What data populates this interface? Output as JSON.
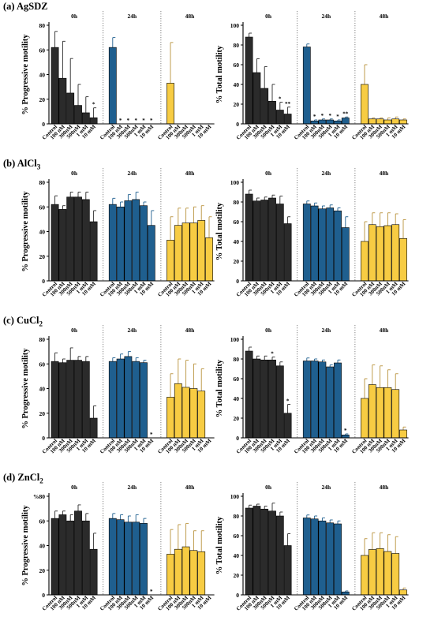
{
  "page": {
    "panels": [
      {
        "label_prefix": "(a) ",
        "label_main": "AgSDZ",
        "label_sub": ""
      },
      {
        "label_prefix": "(b) ",
        "label_main": "AlCl",
        "label_sub": "3"
      },
      {
        "label_prefix": "(c) ",
        "label_main": "CuCl",
        "label_sub": "2"
      },
      {
        "label_prefix": "(d) ",
        "label_main": "ZnCl",
        "label_sub": "2"
      }
    ]
  },
  "colors": {
    "0h": "#2b2b2b",
    "24h": "#1f5f8f",
    "48h": "#f7cc43",
    "48h_err": "#b8913a"
  },
  "chart_data": [
    {
      "id": "a-progressive",
      "type": "bar",
      "panel": 0,
      "side": "left",
      "ylabel": "% Progressive motility",
      "ylim": [
        0,
        80
      ],
      "yticks": [
        0,
        20,
        40,
        60,
        80
      ],
      "groups": [
        "0h",
        "24h",
        "48h"
      ],
      "categories": [
        "Control",
        "100 nM",
        "300nM",
        "500nM",
        "1 mM",
        "10 mM"
      ],
      "series": [
        {
          "name": "0h",
          "values": [
            62,
            37,
            25,
            15,
            9,
            5
          ],
          "errors": [
            13,
            30,
            28,
            17,
            13,
            8
          ],
          "stars": [
            "",
            "",
            "",
            "",
            "",
            "*"
          ]
        },
        {
          "name": "24h",
          "values": [
            62,
            0,
            0,
            0,
            0,
            0
          ],
          "errors": [
            8,
            0,
            0,
            0,
            0,
            0
          ],
          "stars": [
            "",
            "*",
            "*",
            "*",
            "*",
            "*"
          ]
        },
        {
          "name": "48h",
          "values": [
            33,
            0,
            0,
            0,
            0,
            0
          ],
          "errors": [
            33,
            0,
            0,
            0,
            0,
            0
          ],
          "stars": [
            "",
            "",
            "",
            "",
            "",
            ""
          ]
        }
      ]
    },
    {
      "id": "a-total",
      "type": "bar",
      "panel": 0,
      "side": "right",
      "ylabel": "% Total motility",
      "ylim": [
        0,
        100
      ],
      "yticks": [
        0,
        20,
        40,
        60,
        80,
        100
      ],
      "groups": [
        "0h",
        "24h",
        "48h"
      ],
      "categories": [
        "Control",
        "100 nM",
        "300nM",
        "500nM",
        "1 mM",
        "10 mM"
      ],
      "series": [
        {
          "name": "0h",
          "values": [
            88,
            52,
            36,
            23,
            14,
            10
          ],
          "errors": [
            4,
            14,
            22,
            17,
            8,
            7
          ],
          "stars": [
            "",
            "",
            "",
            "",
            "*",
            "**"
          ]
        },
        {
          "name": "24h",
          "values": [
            78,
            3,
            4,
            4,
            3,
            6
          ],
          "errors": [
            3,
            1,
            1,
            1,
            1,
            1
          ],
          "stars": [
            "",
            "*",
            "*",
            "*",
            "*",
            "**"
          ]
        },
        {
          "name": "48h",
          "values": [
            40,
            5,
            5,
            4,
            5,
            4
          ],
          "errors": [
            20,
            1,
            1,
            2,
            2,
            1
          ],
          "stars": [
            "",
            "",
            "",
            "",
            "",
            ""
          ]
        }
      ]
    },
    {
      "id": "b-progressive",
      "type": "bar",
      "panel": 1,
      "side": "left",
      "ylabel": "% Progressive motility",
      "ylim": [
        0,
        80
      ],
      "yticks": [
        0,
        20,
        40,
        60,
        80
      ],
      "groups": [
        "0h",
        "24h",
        "48h"
      ],
      "categories": [
        "Control",
        "100 nM",
        "300nM",
        "500nM",
        "1 mM",
        "10 mM"
      ],
      "series": [
        {
          "name": "0h",
          "values": [
            62,
            58,
            68,
            68,
            66,
            48
          ],
          "errors": [
            7,
            3,
            4,
            4,
            6,
            9
          ],
          "stars": [
            "",
            "",
            "",
            "",
            "",
            ""
          ]
        },
        {
          "name": "24h",
          "values": [
            62,
            60,
            65,
            66,
            61,
            45
          ],
          "errors": [
            5,
            4,
            5,
            6,
            3,
            12
          ],
          "stars": [
            "",
            "",
            "",
            "",
            "",
            ""
          ]
        },
        {
          "name": "48h",
          "values": [
            33,
            45,
            47,
            47,
            49,
            35
          ],
          "errors": [
            19,
            14,
            12,
            13,
            12,
            17
          ],
          "stars": [
            "",
            "",
            "",
            "",
            "",
            ""
          ]
        }
      ]
    },
    {
      "id": "b-total",
      "type": "bar",
      "panel": 1,
      "side": "right",
      "ylabel": "% Total motility",
      "ylim": [
        0,
        100
      ],
      "yticks": [
        0,
        20,
        40,
        60,
        80,
        100
      ],
      "groups": [
        "0h",
        "24h",
        "48h"
      ],
      "categories": [
        "Control",
        "100 nM",
        "300nM",
        "500nM",
        "1 mM",
        "10 mM"
      ],
      "series": [
        {
          "name": "0h",
          "values": [
            88,
            81,
            82,
            84,
            78,
            58
          ],
          "errors": [
            4,
            3,
            3,
            3,
            8,
            7
          ],
          "stars": [
            "",
            "",
            "",
            "",
            "",
            ""
          ]
        },
        {
          "name": "24h",
          "values": [
            78,
            76,
            73,
            74,
            71,
            54
          ],
          "errors": [
            3,
            3,
            3,
            3,
            3,
            11
          ],
          "stars": [
            "",
            "",
            "",
            "",
            "",
            ""
          ]
        },
        {
          "name": "48h",
          "values": [
            40,
            57,
            55,
            56,
            57,
            43
          ],
          "errors": [
            20,
            12,
            14,
            13,
            11,
            19
          ],
          "stars": [
            "",
            "",
            "",
            "",
            "",
            ""
          ]
        }
      ]
    },
    {
      "id": "c-progressive",
      "type": "bar",
      "panel": 2,
      "side": "left",
      "ylabel": "% Progressive motility",
      "ylim": [
        0,
        80
      ],
      "yticks": [
        0,
        20,
        40,
        60,
        80
      ],
      "groups": [
        "0h",
        "24h",
        "48h"
      ],
      "categories": [
        "Control",
        "100 nM",
        "300nM",
        "500nM",
        "1 mM",
        "10 mM"
      ],
      "series": [
        {
          "name": "0h",
          "values": [
            62,
            61,
            63,
            63,
            62,
            16
          ],
          "errors": [
            7,
            3,
            10,
            3,
            4,
            10
          ],
          "stars": [
            "",
            "",
            "",
            "",
            "",
            ""
          ]
        },
        {
          "name": "24h",
          "values": [
            62,
            64,
            66,
            62,
            61,
            0
          ],
          "errors": [
            3,
            4,
            4,
            3,
            2,
            0
          ],
          "stars": [
            "",
            "",
            "",
            "",
            "",
            "*"
          ]
        },
        {
          "name": "48h",
          "values": [
            33,
            44,
            41,
            40,
            38,
            0
          ],
          "errors": [
            19,
            20,
            22,
            20,
            18,
            0
          ],
          "stars": [
            "",
            "",
            "",
            "",
            "",
            ""
          ]
        }
      ]
    },
    {
      "id": "c-total",
      "type": "bar",
      "panel": 2,
      "side": "right",
      "ylabel": "% Total motility",
      "ylim": [
        0,
        100
      ],
      "yticks": [
        0,
        20,
        40,
        60,
        80,
        100
      ],
      "groups": [
        "0h",
        "24h",
        "48h"
      ],
      "categories": [
        "Control",
        "100 nM",
        "300nM",
        "500nM",
        "1 mM",
        "10 mM"
      ],
      "series": [
        {
          "name": "0h",
          "values": [
            88,
            80,
            79,
            79,
            73,
            25
          ],
          "errors": [
            4,
            3,
            4,
            3,
            4,
            9
          ],
          "stars": [
            "",
            "",
            "",
            "*",
            "",
            "*"
          ]
        },
        {
          "name": "24h",
          "values": [
            78,
            78,
            77,
            72,
            76,
            3
          ],
          "errors": [
            3,
            2,
            2,
            2,
            3,
            1
          ],
          "stars": [
            "",
            "",
            "",
            "",
            "",
            "*"
          ]
        },
        {
          "name": "48h",
          "values": [
            40,
            54,
            51,
            51,
            49,
            8
          ],
          "errors": [
            20,
            20,
            22,
            18,
            16,
            3
          ],
          "stars": [
            "",
            "",
            "",
            "",
            "",
            ""
          ]
        }
      ]
    },
    {
      "id": "d-progressive",
      "type": "bar",
      "panel": 3,
      "side": "left",
      "ylabel": "% Progressive motility",
      "ylim": [
        0,
        80
      ],
      "yticks": [
        0,
        20,
        40,
        60,
        80
      ],
      "ytick_labels": [
        "0",
        "20",
        "40",
        "60",
        "%80"
      ],
      "groups": [
        "0h",
        "24h",
        "48h"
      ],
      "categories": [
        "Control",
        "100 nM",
        "300nM",
        "500nM",
        "1 mM",
        "10 mM"
      ],
      "series": [
        {
          "name": "0h",
          "values": [
            62,
            65,
            60,
            68,
            60,
            37
          ],
          "errors": [
            6,
            3,
            5,
            5,
            6,
            13
          ],
          "stars": [
            "",
            "",
            "",
            "",
            "",
            ""
          ]
        },
        {
          "name": "24h",
          "values": [
            62,
            61,
            59,
            59,
            58,
            0
          ],
          "errors": [
            4,
            4,
            5,
            6,
            4,
            0
          ],
          "stars": [
            "",
            "",
            "",
            "",
            "",
            "*"
          ]
        },
        {
          "name": "48h",
          "values": [
            33,
            37,
            39,
            36,
            35,
            0
          ],
          "errors": [
            20,
            20,
            19,
            16,
            17,
            0
          ],
          "stars": [
            "",
            "",
            "",
            "",
            "",
            ""
          ]
        }
      ]
    },
    {
      "id": "d-total",
      "type": "bar",
      "panel": 3,
      "side": "right",
      "ylabel": "% Total motility",
      "ylim": [
        0,
        100
      ],
      "yticks": [
        0,
        20,
        40,
        60,
        80,
        100
      ],
      "groups": [
        "0h",
        "24h",
        "48h"
      ],
      "categories": [
        "Control",
        "100 nM",
        "300nM",
        "500nM",
        "1 mM",
        "10 mM"
      ],
      "series": [
        {
          "name": "0h",
          "values": [
            88,
            90,
            87,
            85,
            80,
            50
          ],
          "errors": [
            3,
            2,
            3,
            8,
            4,
            12
          ],
          "stars": [
            "",
            "",
            "",
            "",
            "",
            ""
          ]
        },
        {
          "name": "24h",
          "values": [
            78,
            77,
            75,
            73,
            72,
            3
          ],
          "errors": [
            3,
            3,
            3,
            3,
            3,
            1
          ],
          "stars": [
            "",
            "",
            "",
            "",
            "",
            ""
          ]
        },
        {
          "name": "48h",
          "values": [
            40,
            46,
            47,
            44,
            42,
            5
          ],
          "errors": [
            17,
            17,
            16,
            17,
            17,
            2
          ],
          "stars": [
            "",
            "",
            "",
            "",
            "",
            ""
          ]
        }
      ]
    }
  ]
}
